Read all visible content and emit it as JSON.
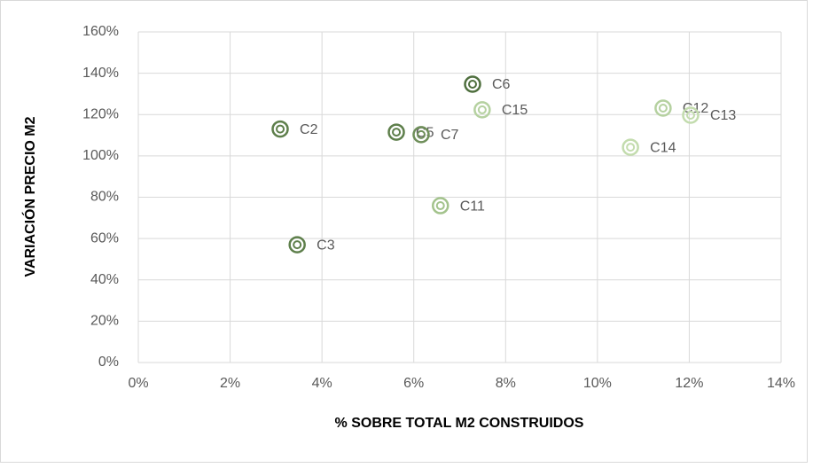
{
  "chart_data": {
    "type": "scatter",
    "xlabel": "% SOBRE TOTAL M2 CONSTRUIDOS",
    "ylabel": "VARIACIÓN PRECIO M2",
    "labels": [
      "C2",
      "C3",
      "C5",
      "C7",
      "C6",
      "C15",
      "C11",
      "C14",
      "C12",
      "C13"
    ],
    "x": [
      3.09,
      3.46,
      5.62,
      6.16,
      7.28,
      7.49,
      6.58,
      10.72,
      11.43,
      12.03
    ],
    "y": [
      113,
      57,
      111.5,
      110.3,
      134.7,
      122.3,
      75.9,
      104.2,
      123.1,
      119.7
    ],
    "colors": [
      "#5e7f4b",
      "#5e7f4b",
      "#5e7f4b",
      "#6f8f5a",
      "#4f6f3e",
      "#b5d1a0",
      "#a3c38c",
      "#c3dcae",
      "#b5d1a0",
      "#c3dcae"
    ],
    "xlim": [
      0,
      14
    ],
    "xticks": [
      {
        "value": 0,
        "label": "0%"
      },
      {
        "value": 2,
        "label": "2%"
      },
      {
        "value": 4,
        "label": "4%"
      },
      {
        "value": 6,
        "label": "6%"
      },
      {
        "value": 8,
        "label": "8%"
      },
      {
        "value": 10,
        "label": "10%"
      },
      {
        "value": 12,
        "label": "12%"
      },
      {
        "value": 14,
        "label": "14%"
      }
    ],
    "ylim": [
      0,
      160
    ],
    "yticks": [
      {
        "value": 0,
        "label": "0%"
      },
      {
        "value": 20,
        "label": "20%"
      },
      {
        "value": 40,
        "label": "40%"
      },
      {
        "value": 60,
        "label": "60%"
      },
      {
        "value": 80,
        "label": "80%"
      },
      {
        "value": 100,
        "label": "100%"
      },
      {
        "value": 120,
        "label": "120%"
      },
      {
        "value": 140,
        "label": "140%"
      },
      {
        "value": 160,
        "label": "160%"
      }
    ],
    "grid": true
  }
}
